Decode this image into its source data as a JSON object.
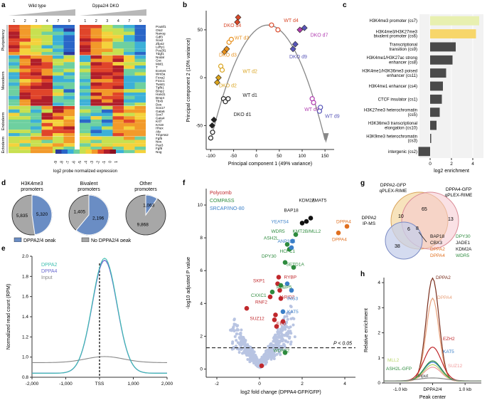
{
  "panel_labels": {
    "a": "a",
    "b": "b",
    "c": "c",
    "d": "d",
    "e": "e",
    "f": "f",
    "g": "g",
    "h": "h"
  },
  "panel_a": {
    "wt_label": "Wild type",
    "dko_label": "Dppa2/4 DKO",
    "timepoints": [
      "1",
      "2",
      "3",
      "4",
      "7",
      "9"
    ],
    "groups": [
      "Pluripotency",
      "Mesoderm",
      "Endoderm",
      "Ectoderm"
    ],
    "genes": {
      "pluripotency": [
        "Pou5f1",
        "Otx2",
        "Nanog",
        "Gdf3",
        "Sox2",
        "Zfp42",
        "Lefty1",
        "Pou3f1",
        "Tdgf1"
      ],
      "mesoderm": [
        "Nodal",
        "Gsc",
        "Mixl1",
        "T",
        "Eomes",
        "Wnt3a",
        "Foxa2",
        "Foxc1",
        "Twist1",
        "Tgfb1",
        "Bmp2",
        "Hand1",
        "Bmp4",
        "Tbx6",
        "Des"
      ],
      "endoderm": [
        "Sox17",
        "Gata6",
        "Sox7",
        "Gata4",
        "Krt7",
        "Krt19",
        "Hhex",
        "Afp",
        "Tmprss2"
      ],
      "ectoderm": [
        "Fgf5",
        "Nes",
        "Pax3",
        "Fgf8",
        "Nog"
      ]
    },
    "colorbar_title": "log2 probe normalized expression",
    "colorbar_ticks": [
      "-9",
      "-8",
      "-7",
      "-6",
      "-5",
      "-4",
      "-3",
      "-2",
      "-1",
      "0",
      "1"
    ]
  },
  "chart_data": [
    {
      "id": "b",
      "type": "scatter",
      "xlabel": "Principal component 1 (49% variance)",
      "ylabel": "Principal component 2 (10% variance)",
      "xlim": [
        -110,
        170
      ],
      "ylim": [
        -75,
        70
      ],
      "xticks": [
        -100,
        -50,
        0,
        50,
        100,
        150
      ],
      "yticks": [
        -50,
        0,
        50
      ],
      "labels": [
        {
          "text": "WT d4",
          "x": 60,
          "y": 58,
          "color": "#d94a2b"
        },
        {
          "text": "DKO d4",
          "x": -72,
          "y": 53,
          "color": "#d94a2b"
        },
        {
          "text": "WT d3",
          "x": -48,
          "y": 40,
          "color": "#e8911e"
        },
        {
          "text": "DKO d3",
          "x": -82,
          "y": 22,
          "color": "#e8911e"
        },
        {
          "text": "WT d2",
          "x": -30,
          "y": 5,
          "color": "#d9a31d"
        },
        {
          "text": "DKO d2",
          "x": -82,
          "y": -10,
          "color": "#d9a31d"
        },
        {
          "text": "WT d1",
          "x": -30,
          "y": -20,
          "color": "#222222"
        },
        {
          "text": "DKO d1",
          "x": -50,
          "y": -40,
          "color": "#222222"
        },
        {
          "text": "DKO d7",
          "x": 118,
          "y": 43,
          "color": "#b03cb0"
        },
        {
          "text": "DKO d9",
          "x": 72,
          "y": 20,
          "color": "#5856b8"
        },
        {
          "text": "WT d7",
          "x": 105,
          "y": -35,
          "color": "#b03cb0"
        },
        {
          "text": "WT d9",
          "x": 150,
          "y": -42,
          "color": "#5856b8"
        }
      ],
      "points": {
        "circles": [
          {
            "x": 33,
            "y": 55,
            "c": "#d94a2b"
          },
          {
            "x": 47,
            "y": 50,
            "c": "#d94a2b"
          },
          {
            "x": -60,
            "y": 37,
            "c": "#e8911e"
          },
          {
            "x": -55,
            "y": 40,
            "c": "#e8911e"
          },
          {
            "x": -78,
            "y": 12,
            "c": "#d9a31d"
          },
          {
            "x": -75,
            "y": 8,
            "c": "#d9a31d"
          },
          {
            "x": -72,
            "y": -22,
            "c": "#222222"
          },
          {
            "x": -68,
            "y": -25,
            "c": "#222222"
          },
          {
            "x": -62,
            "y": -22,
            "c": "#222222"
          },
          {
            "x": -100,
            "y": -63,
            "c": "#222222"
          },
          {
            "x": -96,
            "y": -57,
            "c": "#222222"
          },
          {
            "x": 140,
            "y": -31,
            "c": "#5856b8"
          },
          {
            "x": 138,
            "y": -35,
            "c": "#5856b8"
          },
          {
            "x": 122,
            "y": -22,
            "c": "#b03cb0"
          },
          {
            "x": 125,
            "y": -26,
            "c": "#b03cb0"
          }
        ],
        "diamonds": [
          {
            "x": -40,
            "y": 63,
            "c": "#d94a2b"
          },
          {
            "x": -42,
            "y": 58,
            "c": "#d94a2b"
          },
          {
            "x": -70,
            "y": 27,
            "c": "#e8911e"
          },
          {
            "x": -65,
            "y": 30,
            "c": "#e8911e"
          },
          {
            "x": -83,
            "y": 0,
            "c": "#d9a31d"
          },
          {
            "x": -86,
            "y": -5,
            "c": "#d9a31d"
          },
          {
            "x": -93,
            "y": -44,
            "c": "#222222"
          },
          {
            "x": -97,
            "y": -50,
            "c": "#222222"
          },
          {
            "x": 95,
            "y": 50,
            "c": "#b03cb0"
          },
          {
            "x": 105,
            "y": 52,
            "c": "#5856b8"
          },
          {
            "x": 80,
            "y": 30,
            "c": "#5856b8"
          },
          {
            "x": 85,
            "y": 35,
            "c": "#5856b8"
          }
        ]
      }
    },
    {
      "id": "c",
      "type": "bar",
      "orientation": "horizontal",
      "xlabel": "log2 enrichment",
      "xlim": [
        -1,
        5
      ],
      "xticks": [
        0,
        2,
        4
      ],
      "categories": [
        "H3K4me3 promoter (cs7)",
        "H3K4me3/H3K27me3 bivalent promoter (cs6)",
        "Transcriptional transition (cs9)",
        "H3K4me1/H3K27ac strong enhancer (cs8)",
        "H3K4me1/H3K36me3 poised enhancer (cs11)",
        "H3K4me1 enhancer (cs4)",
        "CTCF insulator (cs1)",
        "H3K27me3 heterochromatin (cs5)",
        "H3K36me3 transcriptional elongation (cs10)",
        "H3K9me3 heterochromatin (cs3)",
        "intergenic (cs2)"
      ],
      "values": [
        4.6,
        4.3,
        2.4,
        2.1,
        1.5,
        1.2,
        1.1,
        0.9,
        0.6,
        0.1,
        -1.1
      ],
      "colors": [
        "#e8f0b0",
        "#f7d66a",
        "#4a4a4a",
        "#4a4a4a",
        "#4a4a4a",
        "#4a4a4a",
        "#4a4a4a",
        "#4a4a4a",
        "#4a4a4a",
        "#4a4a4a",
        "#4a4a4a"
      ]
    },
    {
      "id": "d",
      "type": "pie",
      "pies": [
        {
          "title": "H3K4me3 promoters",
          "values": [
            5320,
            5835
          ],
          "labels": [
            "5,320",
            "5,835"
          ]
        },
        {
          "title": "Bivalent promoters",
          "values": [
            2196,
            1405
          ],
          "labels": [
            "2,196",
            "1,405"
          ]
        },
        {
          "title": "Other promoters",
          "values": [
            1063,
            9868
          ],
          "labels": [
            "1,063",
            "9,868"
          ]
        }
      ],
      "legend": [
        "DPPA2/4 peak",
        "No DPPA2/4 peak"
      ],
      "colors": [
        "#6a8dc4",
        "#a7a7a7"
      ]
    },
    {
      "id": "e",
      "type": "line",
      "xlabel": "",
      "ylabel": "Normalized read count (RPM)",
      "xlim": [
        -2000,
        2000
      ],
      "ylim": [
        0.8,
        2.0
      ],
      "xticks": [
        "-2,000",
        "-1,000",
        "TSS",
        "1,000",
        "2,000"
      ],
      "yticks": [
        0.8,
        1.0,
        1.2,
        1.4,
        1.6,
        1.8,
        2.0
      ],
      "series": [
        {
          "name": "DPPA2",
          "color": "#3dbfb0"
        },
        {
          "name": "DPPA4",
          "color": "#6a6ad0"
        },
        {
          "name": "Input",
          "color": "#888888"
        }
      ]
    },
    {
      "id": "f",
      "type": "scatter",
      "xlabel": "log2 fold change (DPPA4-GFP/GFP)",
      "ylabel": "-log10 adjusted P value",
      "xlim": [
        -2.5,
        4.5
      ],
      "ylim": [
        -0.5,
        11
      ],
      "xticks": [
        -2,
        0,
        2,
        4
      ],
      "yticks": [
        0,
        2,
        4,
        6,
        8,
        10
      ],
      "threshold_label": "P < 0.05",
      "legend": [
        {
          "text": "Polycomb",
          "color": "#c0282c"
        },
        {
          "text": "COMPASS",
          "color": "#2e8b3e"
        },
        {
          "text": "SRCAP/INO-80",
          "color": "#3a7fc8"
        }
      ],
      "annotations": [
        {
          "text": "KDM2A",
          "color": "#111111"
        },
        {
          "text": "ZMAT5",
          "color": "#111111"
        },
        {
          "text": "BAP18",
          "color": "#111111"
        },
        {
          "text": "YEATS4",
          "color": "#3a7fc8"
        },
        {
          "text": "KMT2B/MLL2",
          "color": "#2e8b3e"
        },
        {
          "text": "WDR5",
          "color": "#2e8b3e"
        },
        {
          "text": "ASH2L",
          "color": "#2e8b3e"
        },
        {
          "text": "ANP32E",
          "color": "#3a7fc8"
        },
        {
          "text": "DPY30",
          "color": "#2e8b3e"
        },
        {
          "text": "HCFC1",
          "color": "#2e8b3e"
        },
        {
          "text": "SETD1A",
          "color": "#2e8b3e"
        },
        {
          "text": "RYBP",
          "color": "#c0282c"
        },
        {
          "text": "SKP1",
          "color": "#c0282c"
        },
        {
          "text": "RBBP5",
          "color": "#2e8b3e"
        },
        {
          "text": "CXXC1",
          "color": "#2e8b3e"
        },
        {
          "text": "JARID2",
          "color": "#c0282c"
        },
        {
          "text": "RNF2",
          "color": "#c0282c"
        },
        {
          "text": "ING3",
          "color": "#3a7fc8"
        },
        {
          "text": "KAT5",
          "color": "#3a7fc8"
        },
        {
          "text": "SUZ12",
          "color": "#c0282c"
        },
        {
          "text": "EED",
          "color": "#c0282c"
        },
        {
          "text": "WDR82",
          "color": "#2e8b3e"
        },
        {
          "text": "DPPA4",
          "color": "#e07020"
        },
        {
          "text": "DPPA4",
          "color": "#e07020"
        }
      ]
    },
    {
      "id": "h",
      "type": "line",
      "xlabel": "Peak center",
      "ylabel": "Relative enrichment",
      "ylim": [
        0,
        4.2
      ],
      "yticks": [
        0,
        1,
        2,
        3,
        4
      ],
      "xticks": [
        "-1.0 kb",
        "DPPA2/4",
        "1.0 kb"
      ],
      "series": [
        {
          "name": "DPPA2",
          "color": "#7a2e1c",
          "peak": 4.1
        },
        {
          "name": "DPPA4",
          "color": "#e8a07a",
          "peak": 3.3
        },
        {
          "name": "EZH2",
          "color": "#c0282c",
          "peak": 1.35
        },
        {
          "name": "KAT5",
          "color": "#3a7fc8",
          "peak": 0.75
        },
        {
          "name": "SUZ12",
          "color": "#f09a9a",
          "peak": 0.55
        },
        {
          "name": "MLL2",
          "color": "#b8d66a",
          "peak": 0.65
        },
        {
          "name": "ASH2L-GFP",
          "color": "#2e8b3e",
          "peak": 0.8
        },
        {
          "name": "Input",
          "color": "#888888",
          "peak": 0.12
        }
      ]
    }
  ],
  "panel_g": {
    "set1": "DPPA2-GFP qPLEX-RIME",
    "set2": "DPPA4-GFP qPLEX-RIME",
    "set3": "DPPA2 IP-MS",
    "counts": {
      "only1": "10",
      "shared12": "65",
      "only2": "13",
      "only3": "38",
      "shared13": "6",
      "shared123": "8"
    },
    "proteins": [
      {
        "text": "BAP18",
        "color": "#111111"
      },
      {
        "text": "DPY30",
        "color": "#2e8b3e"
      },
      {
        "text": "CBX3",
        "color": "#111111"
      },
      {
        "text": "JADE1",
        "color": "#111111"
      },
      {
        "text": "DPPA2",
        "color": "#e07020"
      },
      {
        "text": "KDM2A",
        "color": "#111111"
      },
      {
        "text": "DPPA4",
        "color": "#e07020"
      },
      {
        "text": "WDR5",
        "color": "#2e8b3e"
      }
    ]
  },
  "panel_h_extra": {
    "input_label": "Input"
  }
}
